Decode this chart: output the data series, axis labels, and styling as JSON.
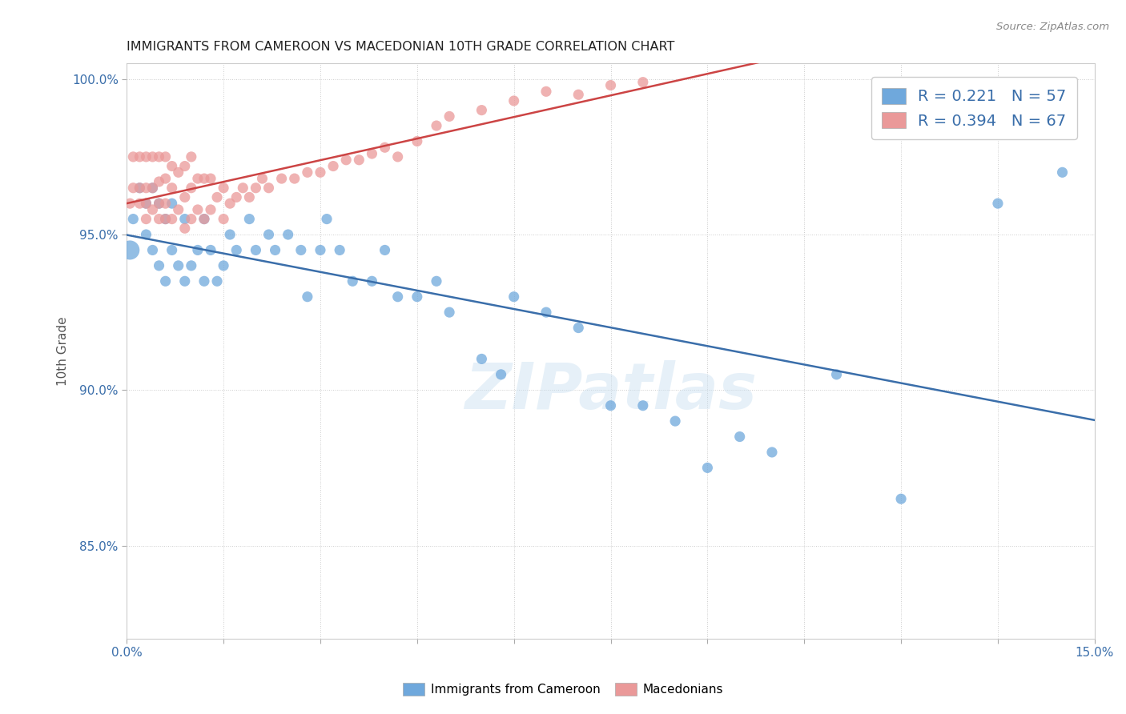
{
  "title": "IMMIGRANTS FROM CAMEROON VS MACEDONIAN 10TH GRADE CORRELATION CHART",
  "source": "Source: ZipAtlas.com",
  "xlabel": "",
  "ylabel": "10th Grade",
  "xlim": [
    0.0,
    0.15
  ],
  "ylim": [
    0.82,
    1.005
  ],
  "xticks": [
    0.0,
    0.015,
    0.03,
    0.045,
    0.06,
    0.075,
    0.09,
    0.105,
    0.12,
    0.135,
    0.15
  ],
  "xticklabels": [
    "0.0%",
    "",
    "",
    "",
    "",
    "",
    "",
    "",
    "",
    "",
    "15.0%"
  ],
  "yticks": [
    0.85,
    0.9,
    0.95,
    1.0
  ],
  "yticklabels": [
    "85.0%",
    "90.0%",
    "95.0%",
    "100.0%"
  ],
  "blue_color": "#6fa8dc",
  "pink_color": "#ea9999",
  "blue_line_color": "#3a6eaa",
  "pink_line_color": "#cc4444",
  "legend_r_blue": "R = 0.221",
  "legend_n_blue": "N = 57",
  "legend_r_pink": "R = 0.394",
  "legend_n_pink": "N = 67",
  "watermark": "ZIPatlas",
  "blue_scatter_x": [
    0.0005,
    0.001,
    0.002,
    0.003,
    0.003,
    0.004,
    0.004,
    0.005,
    0.005,
    0.006,
    0.006,
    0.007,
    0.007,
    0.008,
    0.009,
    0.009,
    0.01,
    0.011,
    0.012,
    0.012,
    0.013,
    0.014,
    0.015,
    0.016,
    0.017,
    0.019,
    0.02,
    0.022,
    0.023,
    0.025,
    0.027,
    0.028,
    0.03,
    0.031,
    0.033,
    0.035,
    0.038,
    0.04,
    0.042,
    0.045,
    0.048,
    0.05,
    0.055,
    0.058,
    0.06,
    0.065,
    0.07,
    0.075,
    0.08,
    0.085,
    0.09,
    0.095,
    0.1,
    0.11,
    0.12,
    0.135,
    0.145
  ],
  "blue_scatter_y": [
    0.945,
    0.955,
    0.965,
    0.95,
    0.96,
    0.945,
    0.965,
    0.94,
    0.96,
    0.935,
    0.955,
    0.945,
    0.96,
    0.94,
    0.935,
    0.955,
    0.94,
    0.945,
    0.935,
    0.955,
    0.945,
    0.935,
    0.94,
    0.95,
    0.945,
    0.955,
    0.945,
    0.95,
    0.945,
    0.95,
    0.945,
    0.93,
    0.945,
    0.955,
    0.945,
    0.935,
    0.935,
    0.945,
    0.93,
    0.93,
    0.935,
    0.925,
    0.91,
    0.905,
    0.93,
    0.925,
    0.92,
    0.895,
    0.895,
    0.89,
    0.875,
    0.885,
    0.88,
    0.905,
    0.865,
    0.96,
    0.97
  ],
  "blue_large_dot_x": [
    0.0005
  ],
  "blue_large_dot_y": [
    0.945
  ],
  "pink_scatter_x": [
    0.0005,
    0.001,
    0.001,
    0.002,
    0.002,
    0.002,
    0.003,
    0.003,
    0.003,
    0.003,
    0.004,
    0.004,
    0.004,
    0.005,
    0.005,
    0.005,
    0.005,
    0.006,
    0.006,
    0.006,
    0.006,
    0.007,
    0.007,
    0.007,
    0.008,
    0.008,
    0.009,
    0.009,
    0.009,
    0.01,
    0.01,
    0.01,
    0.011,
    0.011,
    0.012,
    0.012,
    0.013,
    0.013,
    0.014,
    0.015,
    0.015,
    0.016,
    0.017,
    0.018,
    0.019,
    0.02,
    0.021,
    0.022,
    0.024,
    0.026,
    0.028,
    0.03,
    0.032,
    0.034,
    0.036,
    0.038,
    0.04,
    0.042,
    0.045,
    0.048,
    0.05,
    0.055,
    0.06,
    0.065,
    0.07,
    0.075,
    0.08
  ],
  "pink_scatter_y": [
    0.96,
    0.965,
    0.975,
    0.96,
    0.965,
    0.975,
    0.955,
    0.96,
    0.965,
    0.975,
    0.958,
    0.965,
    0.975,
    0.955,
    0.96,
    0.967,
    0.975,
    0.955,
    0.96,
    0.968,
    0.975,
    0.955,
    0.965,
    0.972,
    0.958,
    0.97,
    0.952,
    0.962,
    0.972,
    0.955,
    0.965,
    0.975,
    0.958,
    0.968,
    0.955,
    0.968,
    0.958,
    0.968,
    0.962,
    0.955,
    0.965,
    0.96,
    0.962,
    0.965,
    0.962,
    0.965,
    0.968,
    0.965,
    0.968,
    0.968,
    0.97,
    0.97,
    0.972,
    0.974,
    0.974,
    0.976,
    0.978,
    0.975,
    0.98,
    0.985,
    0.988,
    0.99,
    0.993,
    0.996,
    0.995,
    0.998,
    0.999
  ]
}
